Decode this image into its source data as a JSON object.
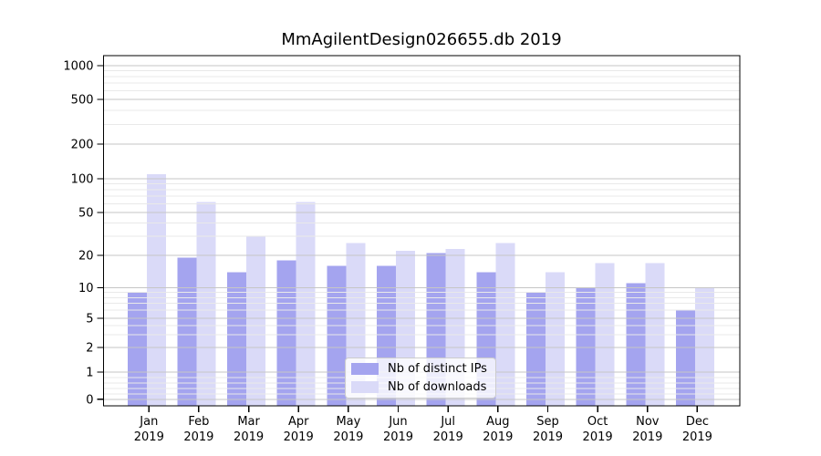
{
  "chart_data": {
    "type": "bar",
    "title": "MmAgilentDesign026655.db 2019",
    "xlabel": "",
    "ylabel": "",
    "yscale": "symlog",
    "yticks": [
      0,
      1,
      2,
      5,
      10,
      20,
      50,
      100,
      200,
      500,
      1000
    ],
    "ytick_labels": [
      "0",
      "1",
      "2",
      "5",
      "10",
      "20",
      "50",
      "100",
      "200",
      "500",
      "1000"
    ],
    "ylim": [
      0,
      1300
    ],
    "grid": {
      "major": true,
      "minor": true
    },
    "legend_position": "lower center",
    "categories": [
      "Jan",
      "Feb",
      "Mar",
      "Apr",
      "May",
      "Jun",
      "Jul",
      "Aug",
      "Sep",
      "Oct",
      "Nov",
      "Dec"
    ],
    "category_year": "2019",
    "series": [
      {
        "name": "Nb of distinct IPs",
        "color": "#a4a4ef",
        "values": [
          9,
          19,
          14,
          18,
          16,
          16,
          21,
          14,
          9,
          10,
          11,
          6
        ]
      },
      {
        "name": "Nb of downloads",
        "color": "#dadaf8",
        "values": [
          110,
          62,
          30,
          62,
          26,
          22,
          23,
          26,
          14,
          17,
          17,
          10
        ]
      }
    ]
  },
  "colors": {
    "background": "#ffffff",
    "axis": "#000000",
    "tick_text": "#000000",
    "grid_major": "#c6c6c6",
    "grid_minor": "#e9e9e9",
    "legend_border": "#cccccc"
  }
}
